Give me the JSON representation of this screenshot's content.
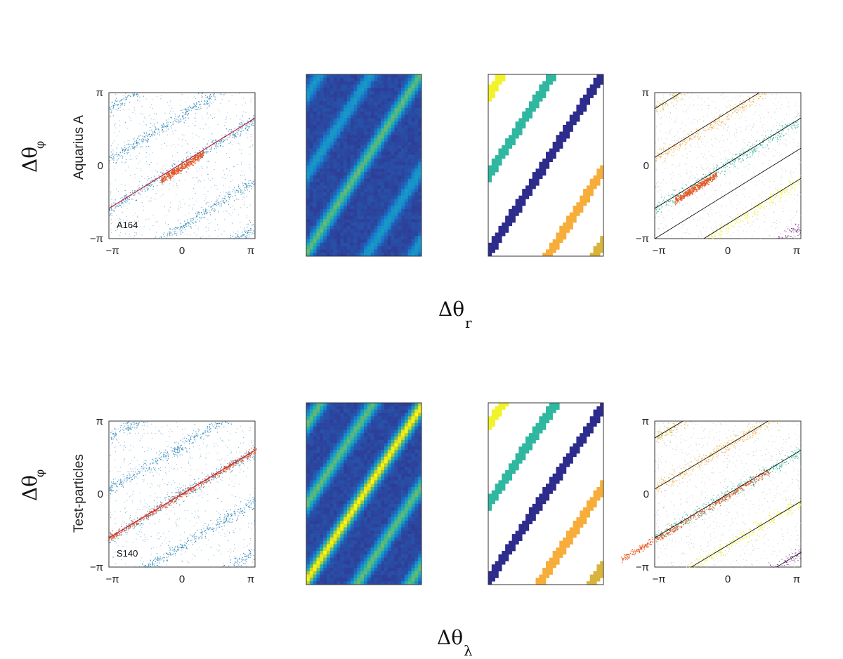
{
  "labels": {
    "ylabel_main": "Δθ",
    "ylabel_sub": "φ",
    "xlabel_row0_main": "Δθ",
    "xlabel_row0_sub": "r",
    "xlabel_row1_main": "Δθ",
    "xlabel_row1_sub": "λ"
  },
  "ticks": {
    "x": [
      "−π",
      "0",
      "π"
    ],
    "y": [
      "π",
      "0",
      "−π"
    ]
  },
  "rows": [
    {
      "name": "Aquarius A",
      "tag": "A164",
      "slope": 0.62,
      "offsets": [
        0.06,
        2.2,
        -2.6,
        4.4,
        -4.6
      ],
      "mainOffset": -0.05,
      "mainHalfLen": 0.9,
      "fitOffset": 0.1
    },
    {
      "name": "Test-particles",
      "tag": "S140",
      "slope": 0.6,
      "offsets": [
        0.0,
        2.1,
        -2.2,
        4.3,
        -4.4
      ],
      "mainOffset": 0.0,
      "mainHalfLen": 3.2,
      "fitOffset": 0.0
    }
  ],
  "chart_data": [
    {
      "type": "scatter",
      "panel": "row1-col1",
      "ylabel": "Aquarius A",
      "annotation": "A164",
      "xlim": [
        -3.1416,
        3.1416
      ],
      "ylim": [
        -3.1416,
        3.1416
      ],
      "series": [
        {
          "color": "#2a84b8"
        },
        {
          "color": "#e8531c"
        }
      ],
      "fit_line": {
        "color": "#c6213a",
        "slope": 0.62,
        "intercept": 0.1
      }
    },
    {
      "type": "heatmap",
      "panel": "row1-col2",
      "colormap": "parula"
    },
    {
      "type": "heatmap",
      "panel": "row1-col3",
      "description_colors": [
        "#1f77d4",
        "#9fba5f",
        "#2d2c8c",
        "#2fb7a0",
        "#f7ad3a",
        "#f2f22a"
      ]
    },
    {
      "type": "scatter",
      "panel": "row1-col4",
      "xlim": [
        -3.1416,
        3.1416
      ],
      "ylim": [
        -3.1416,
        3.1416
      ]
    },
    {
      "type": "scatter",
      "panel": "row2-col1",
      "ylabel": "Test-particles",
      "annotation": "S140",
      "xlim": [
        -3.1416,
        3.1416
      ],
      "ylim": [
        -3.1416,
        3.1416
      ],
      "fit_line": {
        "color": "#c6213a",
        "slope": 0.6,
        "intercept": 0.0
      }
    },
    {
      "type": "heatmap",
      "panel": "row2-col2",
      "colormap": "parula"
    },
    {
      "type": "heatmap",
      "panel": "row2-col3"
    },
    {
      "type": "scatter",
      "panel": "row2-col4",
      "xlim": [
        -3.1416,
        3.1416
      ],
      "ylim": [
        -3.1416,
        3.1416
      ]
    }
  ],
  "colors": {
    "scatter": "#2a84b8",
    "highlight": "#e8531c",
    "fit": "#c6213a",
    "cluster_colors": [
      "#1f77d4",
      "#9fba5f",
      "#2d2c8c",
      "#2fb7a0",
      "#f7ad3a",
      "#f2f22a",
      "#d8b43a",
      "#7e2f8e",
      "#4dbeee",
      "#a2142f",
      "#77ac30"
    ]
  }
}
